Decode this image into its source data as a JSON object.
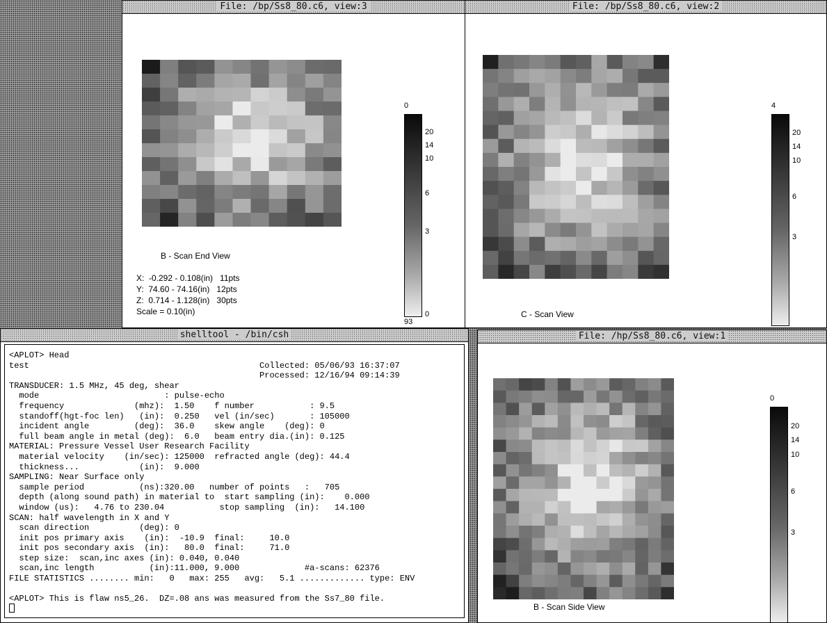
{
  "windows": [
    {
      "title": "File: /bp/Ss8_80.c6, view:3",
      "caption": "B - Scan End View",
      "info": [
        "X:  -0.292 - 0.108(in)   11pts",
        "Y:  74.60 - 74.16(in)   12pts",
        "Z:  0.714 - 1.128(in)   30pts",
        "Scale = 0.10(in)"
      ],
      "scale": {
        "top": "0",
        "ticks": [
          "20",
          "14",
          "10",
          "6",
          "3",
          "0"
        ],
        "bottom": "93"
      }
    },
    {
      "title": "File: /bp/Ss8_80.c6, view:2",
      "caption": "C - Scan View",
      "scale": {
        "top": "4",
        "ticks": [
          "20",
          "14",
          "10",
          "6",
          "3"
        ]
      }
    },
    {
      "title": "File: /hp/Ss8_80.c6, view:1",
      "caption": "B - Scan Side View",
      "scale": {
        "top": "0",
        "ticks": [
          "20",
          "14",
          "10",
          "6",
          "3"
        ]
      }
    }
  ],
  "shell": {
    "title": "shelltool - /bin/csh",
    "output": [
      "<APLOT> Head",
      "test                                              Collected: 05/06/93 16:37:07",
      "                                                  Processed: 12/16/94 09:14:39",
      "TRANSDUCER: 1.5 MHz, 45 deg, shear",
      "  mode                         : pulse-echo",
      "  frequency              (mhz):  1.50    f number           : 9.5",
      "  standoff(hgt-foc len)   (in):  0.250   vel (in/sec)       : 105000",
      "  incident angle         (deg):  36.0    skew angle    (deg): 0",
      "  full beam angle in metal (deg):  6.0   beam entry dia.(in): 0.125",
      "MATERIAL: Pressure Vessel User Research Facility",
      "  material velocity    (in/sec): 125000  refracted angle (deg): 44.4",
      "  thickness...            (in):  9.000",
      "SAMPLING: Near Surface only",
      "  sample period           (ns):320.00   number of points   :   705",
      "  depth (along sound path) in material to  start sampling (in):    0.000",
      "  window (us):   4.76 to 230.04           stop sampling  (in):   14.100",
      "SCAN: half wavelength in X and Y",
      "  scan direction          (deg): 0",
      "  init pos primary axis    (in):  -10.9  final:     10.0",
      "  init pos secondary axis  (in):   80.0  final:     71.0",
      "  step size:  scan,inc axes (in): 0.040, 0.040",
      "  scan,inc length           (in):11.000, 9.000             #a-scans: 62376",
      "FILE STATISTICS ........ min:   0   max: 255   avg:   5.1 ............. type: ENV"
    ],
    "command": "<APLOT> This is flaw ns5_26.  DZ=.08 ans was measured from the Ss7_80 file."
  }
}
